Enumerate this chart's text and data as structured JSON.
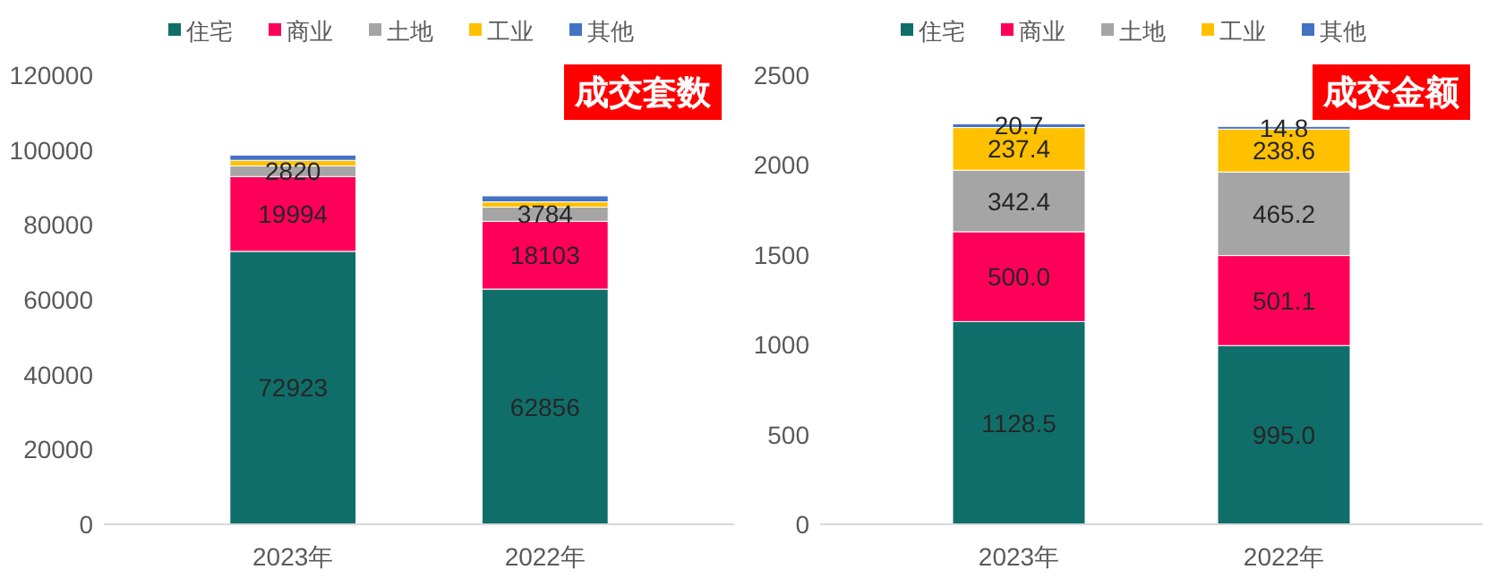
{
  "chart_data": [
    {
      "type": "bar",
      "title": "成交套数",
      "stacked": true,
      "legend": "top",
      "grid": false,
      "categories": [
        "2023年",
        "2022年"
      ],
      "ylim": [
        0,
        120000
      ],
      "yticks": [
        0,
        20000,
        40000,
        60000,
        80000,
        100000,
        120000
      ],
      "series": [
        {
          "name": "住宅",
          "color": "#106e6a",
          "values": [
            72923,
            62856
          ],
          "value_labels": [
            "72923",
            "62856"
          ]
        },
        {
          "name": "商业",
          "color": "#ff0059",
          "values": [
            19994,
            18103
          ],
          "value_labels": [
            "19994",
            "18103"
          ]
        },
        {
          "name": "土地",
          "color": "#a5a5a5",
          "values": [
            2820,
            3784
          ],
          "value_labels": [
            "2820",
            "3784"
          ]
        },
        {
          "name": "工业",
          "color": "#ffc000",
          "values": [
            1500,
            1400
          ],
          "value_labels": [
            null,
            null
          ]
        },
        {
          "name": "其他",
          "color": "#4472c4",
          "values": [
            1400,
            1600
          ],
          "value_labels": [
            null,
            null
          ]
        }
      ]
    },
    {
      "type": "bar",
      "title": "成交金额",
      "stacked": true,
      "legend": "top",
      "grid": false,
      "categories": [
        "2023年",
        "2022年"
      ],
      "ylim": [
        0,
        2500
      ],
      "yticks": [
        0,
        500,
        1000,
        1500,
        2000,
        2500
      ],
      "series": [
        {
          "name": "住宅",
          "color": "#106e6a",
          "values": [
            1128.5,
            995
          ],
          "value_labels": [
            "1128.5",
            "995.0"
          ]
        },
        {
          "name": "商业",
          "color": "#ff0059",
          "values": [
            500,
            501.1
          ],
          "value_labels": [
            "500.0",
            "501.1"
          ]
        },
        {
          "name": "土地",
          "color": "#a5a5a5",
          "values": [
            342.4,
            465.2
          ],
          "value_labels": [
            "342.4",
            "465.2"
          ]
        },
        {
          "name": "工业",
          "color": "#ffc000",
          "values": [
            237.4,
            238.6
          ],
          "value_labels": [
            "237.4",
            "238.6"
          ]
        },
        {
          "name": "其他",
          "color": "#4472c4",
          "values": [
            20.7,
            14.8
          ],
          "value_labels": [
            "20.7",
            "14.8"
          ]
        }
      ]
    }
  ]
}
